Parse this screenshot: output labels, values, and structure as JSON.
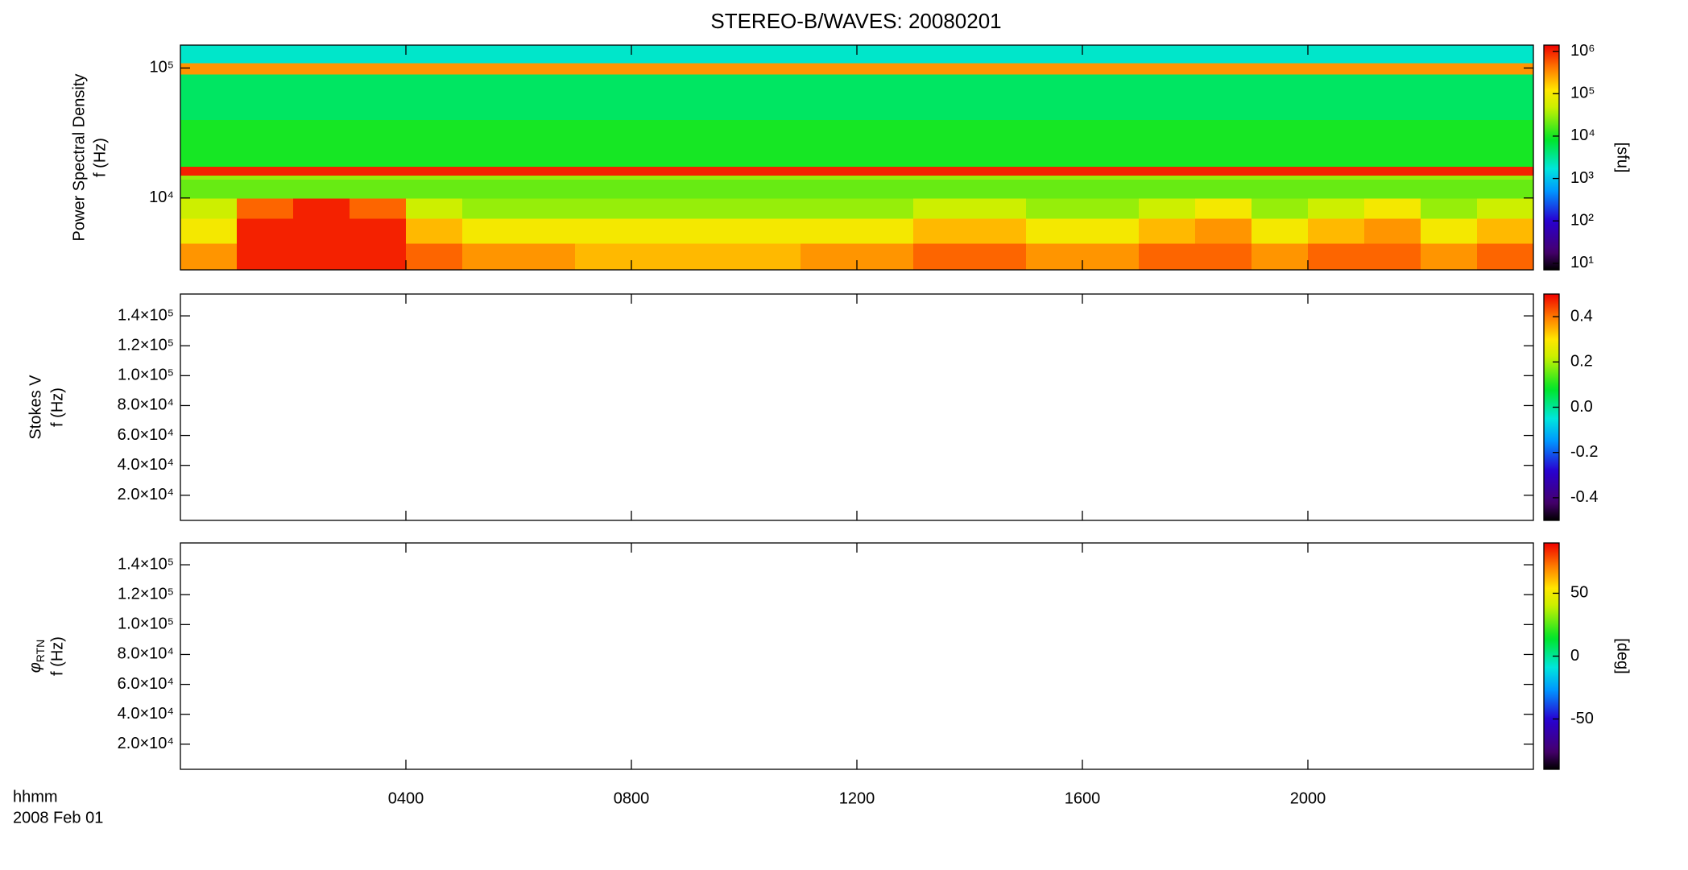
{
  "chart_data": [
    {
      "type": "heatmap",
      "title": "STEREO-B/WAVES: 20080201",
      "ylabel": [
        "Power Spectral Density",
        "f (Hz)"
      ],
      "ylog": true,
      "ylim": [
        2800,
        150000
      ],
      "yticks": [
        {
          "value": 10000,
          "label": "10⁴"
        },
        {
          "value": 100000,
          "label": "10⁵"
        }
      ],
      "xlim": [
        0,
        24
      ],
      "xbins": [
        0,
        1,
        2,
        3,
        4,
        5,
        6,
        7,
        8,
        9,
        10,
        11,
        12,
        13,
        14,
        15,
        16,
        17,
        18,
        19,
        20,
        21,
        22,
        23,
        24
      ],
      "ybins": [
        2800,
        4500,
        7000,
        10000,
        14000,
        15000,
        17500,
        40000,
        90000,
        110000,
        150000
      ],
      "z": [
        [
          300000,
          1000000,
          1000000,
          1000000,
          500000,
          300000,
          300000,
          200000,
          200000,
          200000,
          200000,
          300000,
          300000,
          500000,
          500000,
          300000,
          300000,
          500000,
          500000,
          300000,
          500000,
          500000,
          300000,
          500000
        ],
        [
          100000,
          1000000,
          1000000,
          1000000,
          200000,
          100000,
          100000,
          100000,
          100000,
          100000,
          100000,
          100000,
          100000,
          200000,
          200000,
          100000,
          100000,
          200000,
          300000,
          100000,
          200000,
          300000,
          100000,
          200000
        ],
        [
          50000,
          500000,
          1000000,
          500000,
          50000,
          30000,
          30000,
          30000,
          30000,
          30000,
          30000,
          30000,
          30000,
          50000,
          50000,
          30000,
          30000,
          50000,
          100000,
          30000,
          50000,
          100000,
          30000,
          50000
        ],
        [
          20000,
          20000,
          20000,
          20000,
          20000,
          20000,
          20000,
          20000,
          20000,
          20000,
          20000,
          20000,
          20000,
          20000,
          20000,
          20000,
          20000,
          20000,
          20000,
          20000,
          20000,
          20000,
          20000,
          20000
        ],
        [
          30000,
          30000,
          30000,
          30000,
          30000,
          30000,
          30000,
          30000,
          30000,
          30000,
          30000,
          30000,
          30000,
          30000,
          30000,
          30000,
          30000,
          30000,
          30000,
          30000,
          30000,
          30000,
          30000,
          30000
        ],
        [
          1000000,
          1000000,
          1000000,
          1000000,
          1000000,
          1000000,
          1000000,
          1000000,
          1000000,
          1000000,
          1000000,
          1000000,
          1000000,
          1000000,
          1000000,
          1000000,
          1000000,
          1000000,
          1000000,
          1000000,
          1000000,
          1000000,
          1000000,
          1000000
        ],
        [
          10000,
          10000,
          10000,
          10000,
          10000,
          10000,
          10000,
          10000,
          10000,
          10000,
          10000,
          10000,
          10000,
          10000,
          10000,
          10000,
          10000,
          10000,
          10000,
          10000,
          10000,
          10000,
          10000,
          10000
        ],
        [
          5000,
          5000,
          5000,
          5000,
          5000,
          5000,
          5000,
          5000,
          5000,
          5000,
          5000,
          5000,
          5000,
          5000,
          5000,
          5000,
          5000,
          5000,
          5000,
          5000,
          5000,
          5000,
          5000,
          5000
        ],
        [
          300000,
          300000,
          300000,
          300000,
          300000,
          300000,
          300000,
          300000,
          300000,
          300000,
          300000,
          300000,
          300000,
          300000,
          300000,
          300000,
          300000,
          300000,
          300000,
          300000,
          300000,
          300000,
          300000,
          300000
        ],
        [
          2000,
          2000,
          2000,
          2000,
          2000,
          2000,
          2000,
          2000,
          2000,
          2000,
          2000,
          2000,
          2000,
          2000,
          2000,
          2000,
          2000,
          2000,
          2000,
          2000,
          2000,
          2000,
          2000,
          2000
        ]
      ],
      "colorbar": {
        "log": true,
        "lim": [
          7,
          1400000
        ],
        "label": "[sfu]",
        "ticks": [
          {
            "value": 10,
            "label": "10¹"
          },
          {
            "value": 100,
            "label": "10²"
          },
          {
            "value": 1000,
            "label": "10³"
          },
          {
            "value": 10000,
            "label": "10⁴"
          },
          {
            "value": 100000,
            "label": "10⁵"
          },
          {
            "value": 1000000,
            "label": "10⁶"
          }
        ]
      }
    },
    {
      "type": "heatmap",
      "ylabel": [
        "Stokes V",
        "f (Hz)"
      ],
      "ylim": [
        3200,
        154600
      ],
      "yticks": [
        {
          "value": 20000,
          "label": "2.0×10⁴"
        },
        {
          "value": 40000,
          "label": "4.0×10⁴"
        },
        {
          "value": 60000,
          "label": "6.0×10⁴"
        },
        {
          "value": 80000,
          "label": "8.0×10⁴"
        },
        {
          "value": 100000,
          "label": "1.0×10⁵"
        },
        {
          "value": 120000,
          "label": "1.2×10⁵"
        },
        {
          "value": 140000,
          "label": "1.4×10⁵"
        }
      ],
      "xlim": [
        0,
        24
      ],
      "colorbar": {
        "lim": [
          -0.5,
          0.5
        ],
        "ticks": [
          -0.4,
          -0.2,
          {
            "value": 0,
            "label": "0.0"
          },
          0.2,
          0.4
        ]
      }
    },
    {
      "type": "heatmap",
      "ylabel": [
        {
          "symbol": "φ",
          "sub": "RTN"
        },
        "f (Hz)"
      ],
      "ylim": [
        3200,
        154600
      ],
      "yticks": [
        {
          "value": 20000,
          "label": "2.0×10⁴"
        },
        {
          "value": 40000,
          "label": "4.0×10⁴"
        },
        {
          "value": 60000,
          "label": "6.0×10⁴"
        },
        {
          "value": 80000,
          "label": "8.0×10⁴"
        },
        {
          "value": 100000,
          "label": "1.0×10⁵"
        },
        {
          "value": 120000,
          "label": "1.2×10⁵"
        },
        {
          "value": 140000,
          "label": "1.4×10⁵"
        }
      ],
      "xlim": [
        0,
        24
      ],
      "xlabel": "hhmm",
      "date_label": "2008 Feb 01",
      "xticks": [
        {
          "value": 4,
          "label": "0400"
        },
        {
          "value": 8,
          "label": "0800"
        },
        {
          "value": 12,
          "label": "1200"
        },
        {
          "value": 16,
          "label": "1600"
        },
        {
          "value": 20,
          "label": "2000"
        }
      ],
      "colorbar": {
        "lim": [
          -90,
          90
        ],
        "label": "[deg]",
        "ticks": [
          -50,
          0,
          50
        ]
      }
    }
  ]
}
